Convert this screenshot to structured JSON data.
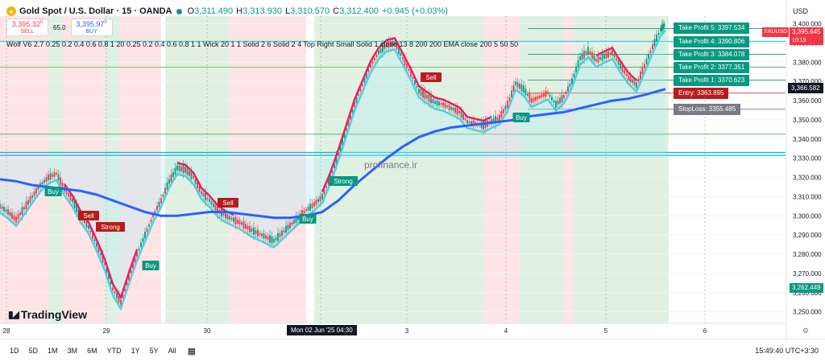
{
  "header": {
    "symbol_title": "Gold Spot / U.S. Dollar · 15 · OANDA",
    "ohlc": [
      {
        "key": "O",
        "value": "3,311.490"
      },
      {
        "key": "H",
        "value": "3,313.930"
      },
      {
        "key": "L",
        "value": "3,310.570"
      },
      {
        "key": "C",
        "value": "3,312.400"
      }
    ],
    "change": "+0.945 (+0.03%)",
    "sell_price": "3,395.32",
    "sell_sup": "0",
    "sell_label": "SELL",
    "spread": "65.0",
    "buy_price": "3,395.97",
    "buy_sup": "0",
    "buy_label": "BUY",
    "indicator": "Wolf V6 2.7 0.25 0.2 0.4 0.6 0.8 1 20 0.25 0.2 0.4 0.6 0.8 1 1 Wick 20 1 1 Solid 2 6 Solid 2 4 Top Right Small Solid 1 close 13 8 200 200 EMA close 200 5 50 50",
    "currency": "USD"
  },
  "watermark": "profinance.ir",
  "logo_text": "TradingView",
  "trade_levels": {
    "take_profits": [
      {
        "label": "Take Profit 5: 3397.534",
        "price": 3397.534
      },
      {
        "label": "Take Profit 4: 3390.806",
        "price": 3390.806
      },
      {
        "label": "Take Profit 3: 3384.078",
        "price": 3384.078
      },
      {
        "label": "Take Profit 2: 3377.351",
        "price": 3377.351
      },
      {
        "label": "Take Profit 1: 3370.623",
        "price": 3370.623
      }
    ],
    "entry": {
      "label": "Entry: 3363.895",
      "price": 3363.895
    },
    "stoploss": {
      "label": "StopLoss: 3355.485",
      "price": 3355.485
    }
  },
  "price_tags": {
    "symbol_tag": "XAUUSD",
    "last_price": "3,395.645",
    "countdown": "10:19",
    "crosshair_price": "3,366.582",
    "ema_price": "3,262.449",
    "crosshair_date": "Mon 02 Jun '25   04:30"
  },
  "toolbar": {
    "ranges": [
      "1D",
      "5D",
      "1M",
      "3M",
      "6M",
      "YTD",
      "1Y",
      "5Y",
      "All"
    ],
    "clock": "15:49:40 UTC+3:30"
  },
  "colors": {
    "up": "#089981",
    "down": "#f23645",
    "ema": "#2962ff",
    "bull_zone": "#c8e6c9",
    "bear_zone": "#ffcdd2",
    "cyan_band": "#4dd0e1",
    "pink_band": "#e91e63"
  },
  "chart_data": {
    "type": "line",
    "symbol": "XAUUSD",
    "timeframe": "15",
    "x_ticks": [
      "28",
      "29",
      "30",
      "Mon 02 Jun '25   04:30",
      "3",
      "4",
      "5",
      "6"
    ],
    "y_ticks": [
      3250,
      3260,
      3270,
      3280,
      3290,
      3300,
      3310,
      3320,
      3330,
      3340,
      3350,
      3360,
      3370,
      3380,
      3390,
      3400
    ],
    "ylim": [
      3244,
      3404
    ],
    "horizontal_lines": [
      3342.5,
      3333,
      3331.5
    ],
    "series": [
      {
        "x": [
          0,
          10,
          20,
          30,
          40,
          50,
          60,
          70,
          80,
          90,
          100,
          110,
          120,
          130,
          140,
          150,
          160,
          170,
          180,
          190,
          200,
          210,
          220,
          230,
          240,
          250,
          260,
          270,
          280,
          290,
          300,
          310,
          320,
          330,
          340,
          350,
          360,
          370,
          380,
          390,
          400,
          410,
          420,
          430,
          440,
          450,
          460,
          470,
          480,
          490,
          500,
          510,
          520,
          530,
          540,
          550,
          560,
          570,
          580,
          590,
          600,
          610,
          620,
          630,
          640,
          650,
          660,
          670,
          680,
          690,
          700,
          710,
          720,
          730,
          740,
          750,
          760,
          770,
          780,
          790,
          800,
          810,
          820,
          826
        ],
        "values": [
          3305,
          3302,
          3298,
          3304,
          3310,
          3316,
          3320,
          3322,
          3314,
          3308,
          3300,
          3294,
          3285,
          3275,
          3262,
          3255,
          3268,
          3280,
          3290,
          3300,
          3308,
          3318,
          3325,
          3324,
          3320,
          3312,
          3308,
          3303,
          3300,
          3298,
          3296,
          3293,
          3291,
          3289,
          3287,
          3291,
          3295,
          3299,
          3303,
          3306,
          3310,
          3320,
          3332,
          3345,
          3358,
          3368,
          3378,
          3385,
          3389,
          3390,
          3382,
          3374,
          3365,
          3362,
          3359,
          3358,
          3356,
          3354,
          3349,
          3348,
          3347,
          3349,
          3351,
          3358,
          3369,
          3366,
          3360,
          3362,
          3364,
          3358,
          3362,
          3370,
          3382,
          3386,
          3381,
          3383,
          3385,
          3378,
          3372,
          3368,
          3378,
          3388,
          3397,
          3400
        ]
      },
      {
        "x": [
          0,
          20,
          40,
          60,
          80,
          100,
          120,
          140,
          160,
          180,
          200,
          220,
          240,
          260,
          280,
          300,
          320,
          340,
          360,
          380,
          400,
          420,
          440,
          460,
          480,
          500,
          520,
          540,
          560,
          580,
          600,
          620,
          640,
          660,
          680,
          700,
          720,
          740,
          760,
          780,
          800,
          826
        ],
        "values": [
          3319,
          3318,
          3316,
          3315,
          3314,
          3313,
          3311,
          3308,
          3305,
          3302,
          3300,
          3300,
          3301,
          3302,
          3302,
          3301,
          3300,
          3299,
          3299,
          3300,
          3302,
          3308,
          3316,
          3323,
          3330,
          3336,
          3341,
          3344,
          3346,
          3347,
          3348,
          3349,
          3350,
          3352,
          3353,
          3354,
          3356,
          3358,
          3360,
          3361,
          3363,
          3366
        ]
      }
    ]
  }
}
